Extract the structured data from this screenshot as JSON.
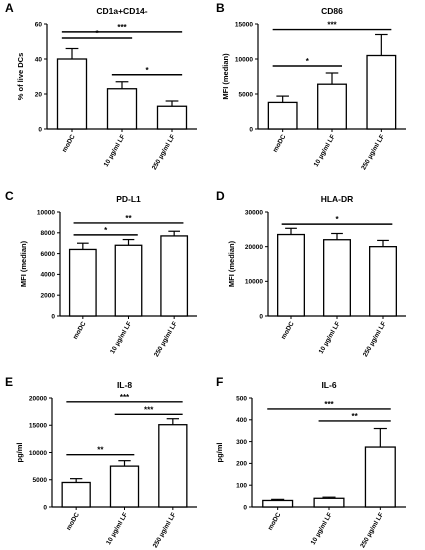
{
  "figure": {
    "categories": [
      "moDC",
      "10 µg/ml LF",
      "250 µg/ml LF"
    ]
  },
  "chart_data": [
    {
      "type": "bar",
      "panel": "A",
      "title": "CD1a+CD14-",
      "ylabel": "% of live DCs",
      "xlabel": "",
      "categories": [
        "moDC",
        "10 µg/ml LF",
        "250 µg/ml LF"
      ],
      "values": [
        40,
        23,
        13
      ],
      "errors": [
        6,
        4,
        3
      ],
      "ylim": [
        0,
        60
      ],
      "yticks": [
        0,
        20,
        40,
        60
      ],
      "significance": [
        {
          "from": 0,
          "to": 1,
          "label": "*",
          "y": 52
        },
        {
          "from": 0,
          "to": 2,
          "label": "***",
          "y": 55.5
        },
        {
          "from": 1,
          "to": 2,
          "label": "*",
          "y": 31
        }
      ]
    },
    {
      "type": "bar",
      "panel": "B",
      "title": "CD86",
      "ylabel": "MFI (median)",
      "xlabel": "",
      "categories": [
        "moDC",
        "10 µg/ml LF",
        "250 µg/ml LF"
      ],
      "values": [
        3800,
        6400,
        10500
      ],
      "errors": [
        900,
        1600,
        3000
      ],
      "ylim": [
        0,
        15000
      ],
      "yticks": [
        0,
        5000,
        10000,
        15000
      ],
      "significance": [
        {
          "from": 0,
          "to": 1,
          "label": "*",
          "y": 9000
        },
        {
          "from": 0,
          "to": 2,
          "label": "***",
          "y": 14200
        }
      ]
    },
    {
      "type": "bar",
      "panel": "C",
      "title": "PD-L1",
      "ylabel": "MFI (median)",
      "xlabel": "",
      "categories": [
        "moDC",
        "10 µg/ml LF",
        "250 µg/ml LF"
      ],
      "values": [
        6400,
        6800,
        7700
      ],
      "errors": [
        600,
        550,
        450
      ],
      "ylim": [
        0,
        10000
      ],
      "yticks": [
        0,
        2000,
        4000,
        6000,
        8000,
        10000
      ],
      "significance": [
        {
          "from": 0,
          "to": 1,
          "label": "*",
          "y": 7800
        },
        {
          "from": 0,
          "to": 2,
          "label": "**",
          "y": 8950
        }
      ]
    },
    {
      "type": "bar",
      "panel": "D",
      "title": "HLA-DR",
      "ylabel": "MFI (median)",
      "xlabel": "",
      "categories": [
        "moDC",
        "10 µg/ml LF",
        "250 µg/ml LF"
      ],
      "values": [
        23500,
        22000,
        20000
      ],
      "errors": [
        1800,
        1800,
        1800
      ],
      "ylim": [
        0,
        30000
      ],
      "yticks": [
        0,
        10000,
        20000,
        30000
      ],
      "significance": [
        {
          "from": 0,
          "to": 2,
          "label": "*",
          "y": 26500
        }
      ]
    },
    {
      "type": "bar",
      "panel": "E",
      "title": "IL-8",
      "ylabel": "pg/ml",
      "xlabel": "",
      "categories": [
        "moDC",
        "10 µg/ml LF",
        "250 µg/ml LF"
      ],
      "values": [
        4500,
        7500,
        15100
      ],
      "errors": [
        700,
        1000,
        1100
      ],
      "ylim": [
        0,
        20000
      ],
      "yticks": [
        0,
        5000,
        10000,
        15000,
        20000
      ],
      "significance": [
        {
          "from": 0,
          "to": 1,
          "label": "**",
          "y": 9600
        },
        {
          "from": 1,
          "to": 2,
          "label": "***",
          "y": 17000
        },
        {
          "from": 0,
          "to": 2,
          "label": "***",
          "y": 19300
        }
      ]
    },
    {
      "type": "bar",
      "panel": "F",
      "title": "IL-6",
      "ylabel": "pg/ml",
      "xlabel": "",
      "categories": [
        "moDC",
        "10 µg/ml LF",
        "250 µg/ml LF"
      ],
      "values": [
        30,
        40,
        275
      ],
      "errors": [
        5,
        5,
        85
      ],
      "ylim": [
        0,
        500
      ],
      "yticks": [
        0,
        100,
        200,
        300,
        400,
        500
      ],
      "significance": [
        {
          "from": 1,
          "to": 2,
          "label": "**",
          "y": 395
        },
        {
          "from": 0,
          "to": 2,
          "label": "***",
          "y": 450
        }
      ]
    }
  ]
}
